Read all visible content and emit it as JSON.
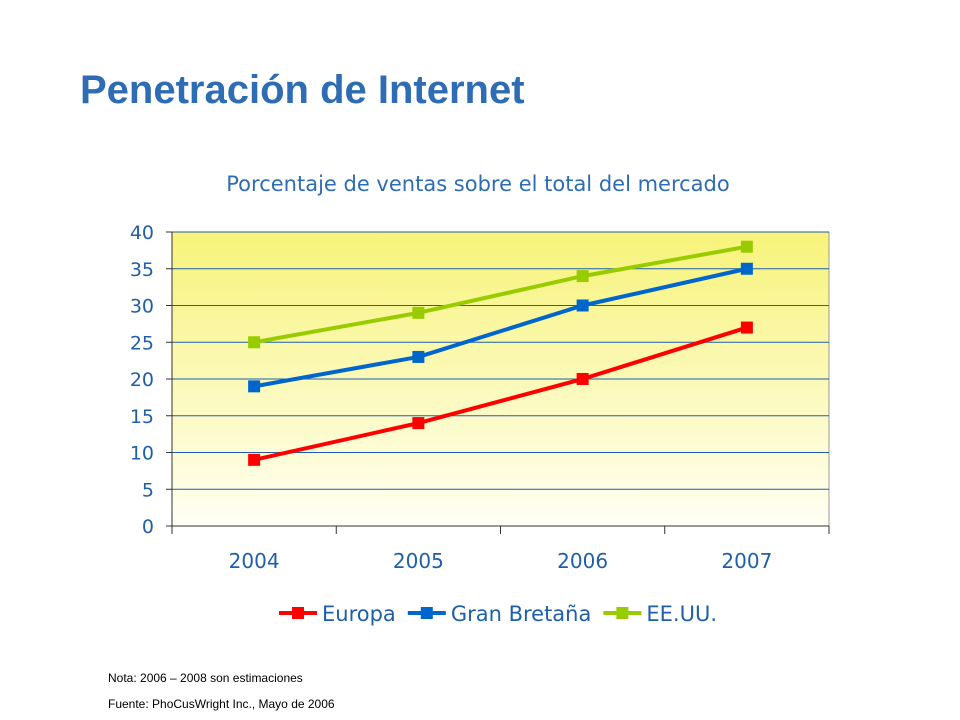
{
  "slide": {
    "title": "Penetración de Internet",
    "notes": [
      "Nota: 2006 – 2008 son estimaciones",
      "Fuente: PhoCusWright Inc., Mayo de 2006"
    ]
  },
  "chart_data": {
    "type": "line",
    "title": "Porcentaje de ventas sobre el total del mercado",
    "xlabel": "",
    "ylabel": "",
    "categories": [
      "2004",
      "2005",
      "2006",
      "2007"
    ],
    "ylim": [
      0,
      40
    ],
    "yticks": [
      0,
      5,
      10,
      15,
      20,
      25,
      30,
      35,
      40
    ],
    "grid": true,
    "legend_position": "bottom",
    "series": [
      {
        "name": "Europa",
        "values": [
          9,
          14,
          20,
          27
        ],
        "color": "#FF0000"
      },
      {
        "name": "Gran Bretaña",
        "values": [
          19,
          23,
          30,
          35
        ],
        "color": "#0066CC"
      },
      {
        "name": "EE.UU.",
        "values": [
          25,
          29,
          34,
          38
        ],
        "color": "#99CC00"
      }
    ],
    "colors": {
      "title": "#2E6DB4",
      "axis_text": "#1F5FAA",
      "plot_top": "#F7F37A",
      "plot_bottom": "#FFFFF4"
    }
  }
}
